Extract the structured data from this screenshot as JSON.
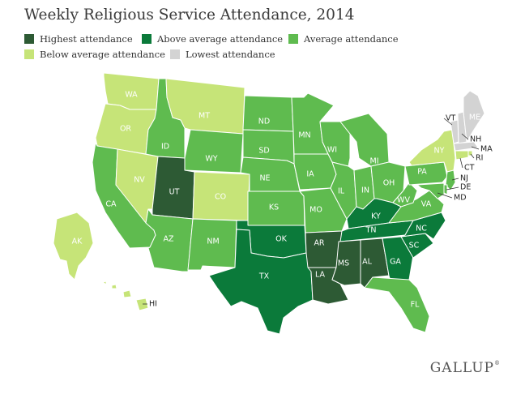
{
  "title": "Weekly Religious Service Attendance, 2014",
  "legend": [
    {
      "label": "Highest attendance",
      "color": "#2d5a34"
    },
    {
      "label": "Above average attendance",
      "color": "#0b7a3a"
    },
    {
      "label": "Average attendance",
      "color": "#5fbb4f"
    },
    {
      "label": "Below average attendance",
      "color": "#c6e478"
    },
    {
      "label": "Lowest attendance",
      "color": "#d3d3d3"
    }
  ],
  "states": [
    {
      "abbr": "WA",
      "level": "below"
    },
    {
      "abbr": "OR",
      "level": "below"
    },
    {
      "abbr": "CA",
      "level": "average"
    },
    {
      "abbr": "NV",
      "level": "below"
    },
    {
      "abbr": "ID",
      "level": "average"
    },
    {
      "abbr": "MT",
      "level": "below"
    },
    {
      "abbr": "WY",
      "level": "average"
    },
    {
      "abbr": "UT",
      "level": "highest"
    },
    {
      "abbr": "CO",
      "level": "below"
    },
    {
      "abbr": "AZ",
      "level": "average"
    },
    {
      "abbr": "NM",
      "level": "average"
    },
    {
      "abbr": "ND",
      "level": "average"
    },
    {
      "abbr": "SD",
      "level": "average"
    },
    {
      "abbr": "NE",
      "level": "average"
    },
    {
      "abbr": "KS",
      "level": "average"
    },
    {
      "abbr": "OK",
      "level": "above"
    },
    {
      "abbr": "TX",
      "level": "above"
    },
    {
      "abbr": "MN",
      "level": "average"
    },
    {
      "abbr": "IA",
      "level": "average"
    },
    {
      "abbr": "MO",
      "level": "average"
    },
    {
      "abbr": "AR",
      "level": "highest"
    },
    {
      "abbr": "LA",
      "level": "highest"
    },
    {
      "abbr": "WI",
      "level": "average"
    },
    {
      "abbr": "IL",
      "level": "average"
    },
    {
      "abbr": "MI",
      "level": "average"
    },
    {
      "abbr": "IN",
      "level": "average"
    },
    {
      "abbr": "OH",
      "level": "average"
    },
    {
      "abbr": "KY",
      "level": "above"
    },
    {
      "abbr": "TN",
      "level": "above"
    },
    {
      "abbr": "MS",
      "level": "highest"
    },
    {
      "abbr": "AL",
      "level": "highest"
    },
    {
      "abbr": "GA",
      "level": "above"
    },
    {
      "abbr": "FL",
      "level": "average"
    },
    {
      "abbr": "SC",
      "level": "above"
    },
    {
      "abbr": "NC",
      "level": "above"
    },
    {
      "abbr": "VA",
      "level": "average"
    },
    {
      "abbr": "WV",
      "level": "average"
    },
    {
      "abbr": "PA",
      "level": "average"
    },
    {
      "abbr": "NY",
      "level": "below"
    },
    {
      "abbr": "NJ",
      "level": "average"
    },
    {
      "abbr": "DE",
      "level": "average"
    },
    {
      "abbr": "MD",
      "level": "average"
    },
    {
      "abbr": "VT",
      "level": "lowest"
    },
    {
      "abbr": "NH",
      "level": "lowest"
    },
    {
      "abbr": "ME",
      "level": "lowest"
    },
    {
      "abbr": "MA",
      "level": "lowest"
    },
    {
      "abbr": "RI",
      "level": "below"
    },
    {
      "abbr": "CT",
      "level": "below"
    },
    {
      "abbr": "AK",
      "level": "below"
    },
    {
      "abbr": "HI",
      "level": "below"
    }
  ],
  "brand": {
    "name": "GALLUP",
    "mark": "®"
  }
}
